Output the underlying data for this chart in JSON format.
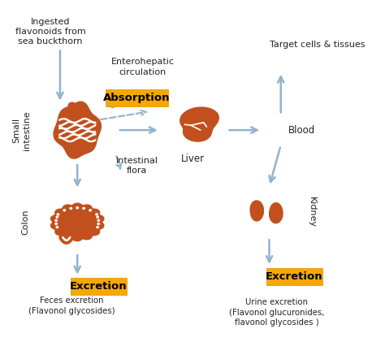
{
  "bg_color": "#ffffff",
  "organ_color": "#c1501e",
  "arrow_color": "#90b4cc",
  "label_box_color": "#f5a800",
  "label_text_color": "#000000",
  "text_color": "#222222",
  "figsize": [
    4.74,
    4.21
  ],
  "dpi": 100,
  "texts": {
    "ingested": "Ingested\nflavonoids from\nsea buckthorn",
    "enterohepatic": "Enterohepatic\ncirculation",
    "target_cells": "Target cells & tissues",
    "small_intestine": "Small\nintestine",
    "colon": "Colon",
    "liver": "Liver",
    "blood": "Blood",
    "kidney": "Kidney",
    "intestinal_flora": "Intestinal\nflora",
    "absorption": "Absorption",
    "excretion_left": "Excretion",
    "excretion_right": "Excretion",
    "feces": "Feces excretion\n(Flavonol glycosides)",
    "urine": "Urine excretion\n(Flavonol glucuronides,\nflavonol glycosides )"
  }
}
